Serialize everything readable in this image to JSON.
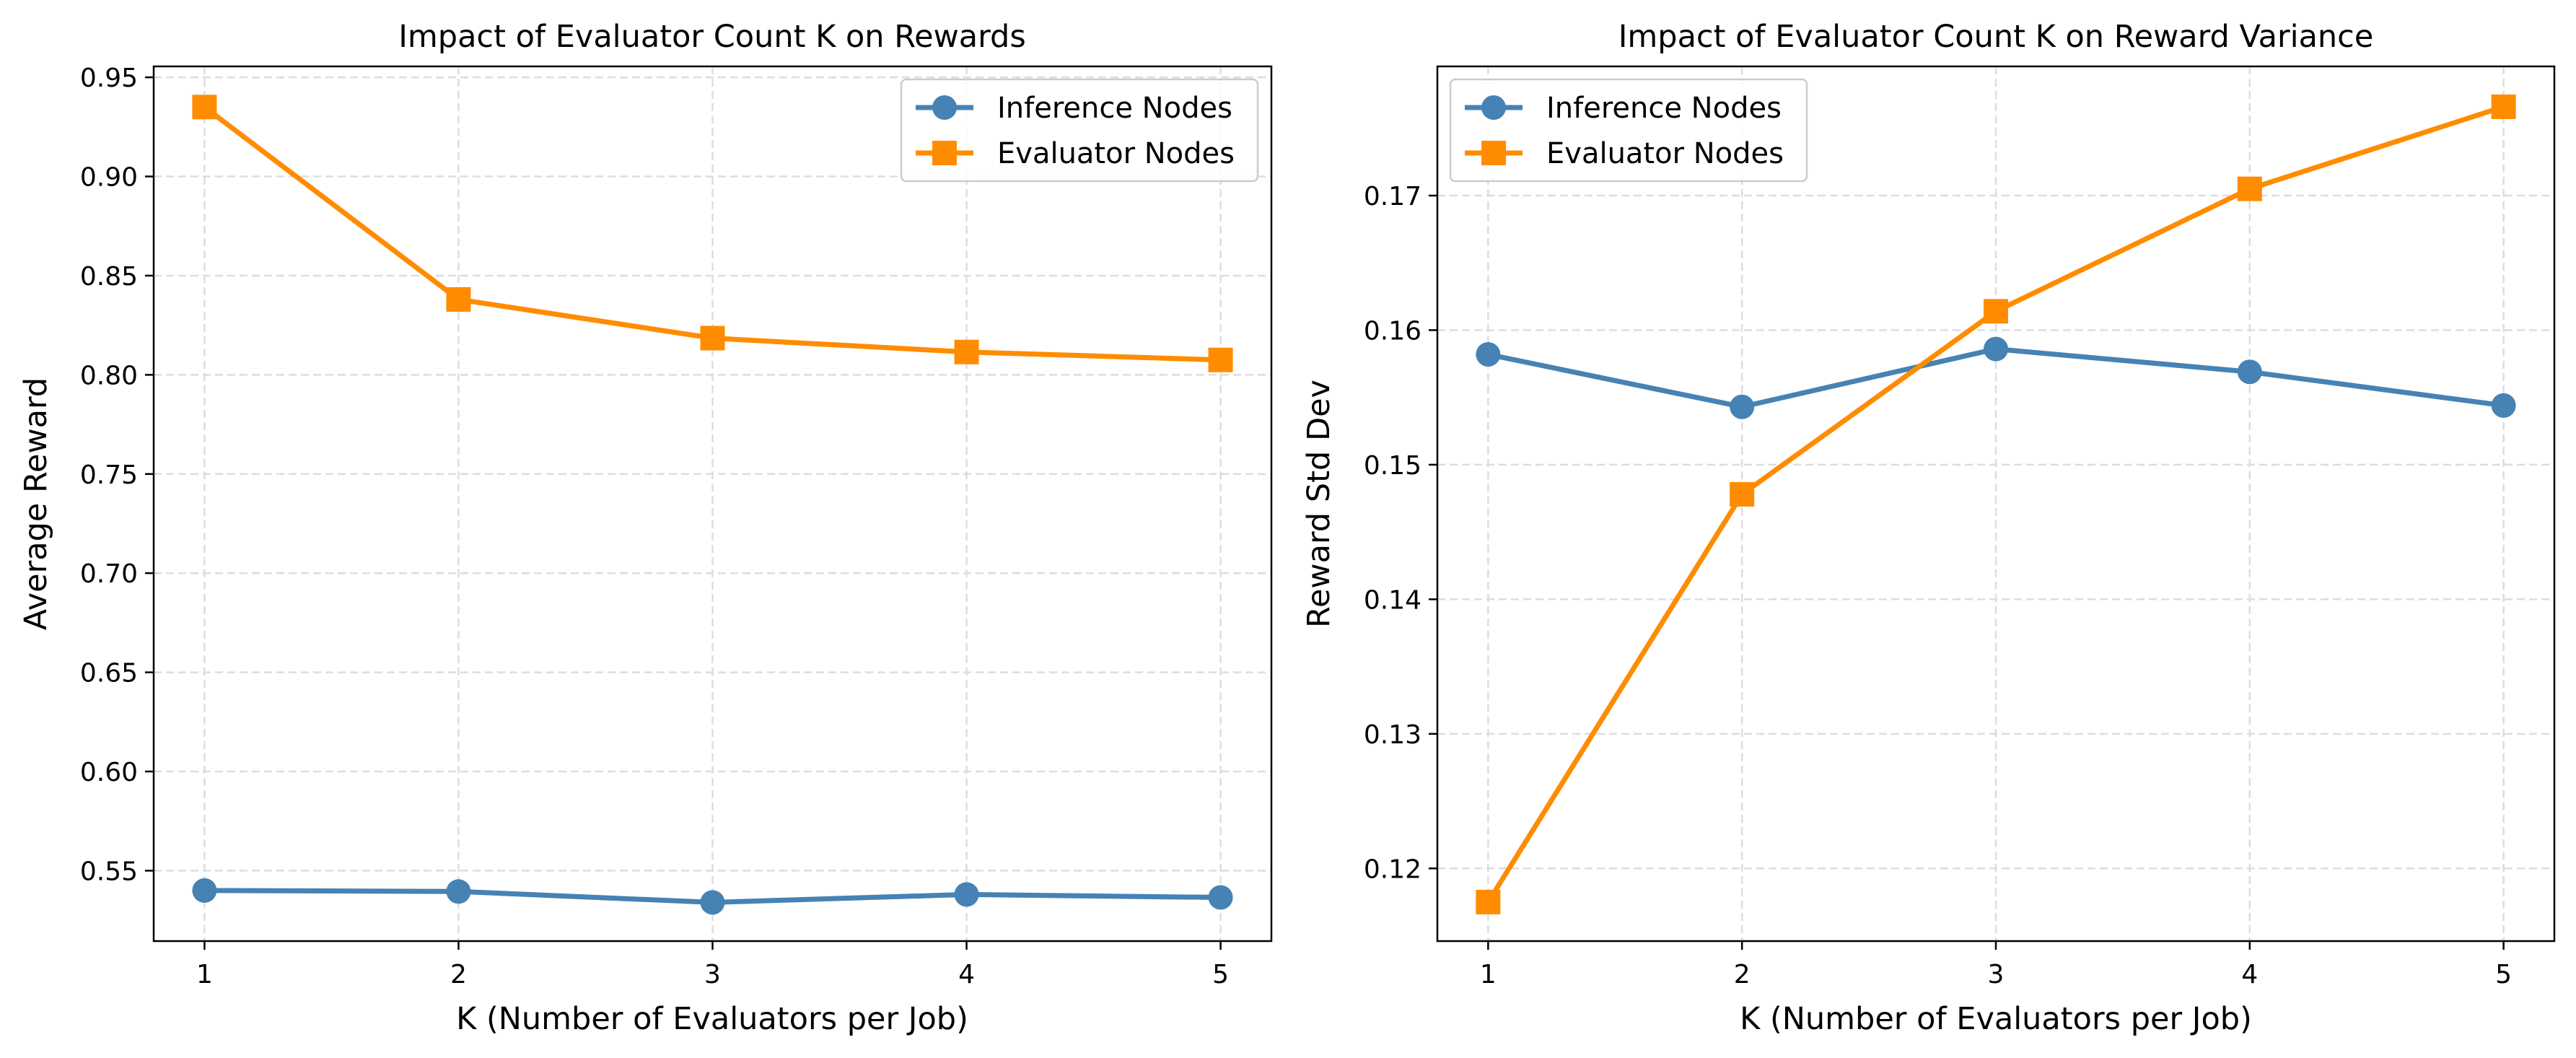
{
  "chart_data": [
    {
      "type": "line",
      "title": "Impact of Evaluator Count K on Rewards",
      "xlabel": "K (Number of Evaluators per Job)",
      "ylabel": "Average Reward",
      "x": [
        1,
        2,
        3,
        4,
        5
      ],
      "xlim": [
        0.8,
        5.2
      ],
      "ylim": [
        0.5145,
        0.9555
      ],
      "yticks": [
        "0.55",
        "0.60",
        "0.65",
        "0.70",
        "0.75",
        "0.80",
        "0.85",
        "0.90",
        "0.95"
      ],
      "xticks": [
        "1",
        "2",
        "3",
        "4",
        "5"
      ],
      "grid": true,
      "legend": "top-right",
      "series": [
        {
          "name": "Inference Nodes",
          "marker": "circle",
          "color": "#4682b4",
          "values": [
            0.54,
            0.5395,
            0.534,
            0.538,
            0.5365
          ]
        },
        {
          "name": "Evaluator Nodes",
          "marker": "square",
          "color": "#ff8c00",
          "values": [
            0.935,
            0.838,
            0.8185,
            0.8115,
            0.8075
          ]
        }
      ]
    },
    {
      "type": "line",
      "title": "Impact of Evaluator Count K on Reward Variance",
      "xlabel": "K (Number of Evaluators per Job)",
      "ylabel": "Reward Std Dev",
      "x": [
        1,
        2,
        3,
        4,
        5
      ],
      "xlim": [
        0.8,
        5.2
      ],
      "ylim": [
        0.1146,
        0.1796
      ],
      "yticks": [
        "0.12",
        "0.13",
        "0.14",
        "0.15",
        "0.16",
        "0.17"
      ],
      "xticks": [
        "1",
        "2",
        "3",
        "4",
        "5"
      ],
      "grid": true,
      "legend": "top-left",
      "series": [
        {
          "name": "Inference Nodes",
          "marker": "circle",
          "color": "#4682b4",
          "values": [
            0.1582,
            0.1543,
            0.1586,
            0.1569,
            0.1544
          ]
        },
        {
          "name": "Evaluator Nodes",
          "marker": "square",
          "color": "#ff8c00",
          "values": [
            0.1175,
            0.1478,
            0.1614,
            0.1705,
            0.1766
          ]
        }
      ]
    }
  ]
}
